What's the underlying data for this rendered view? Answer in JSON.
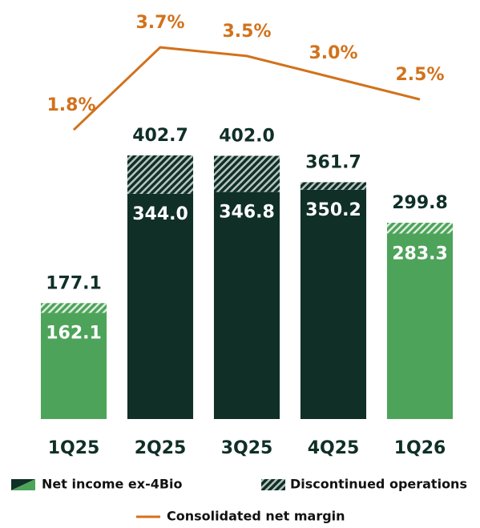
{
  "chart_data": {
    "type": "bar",
    "categories": [
      "1Q25",
      "2Q25",
      "3Q25",
      "4Q25",
      "1Q26"
    ],
    "series": [
      {
        "name": "Net income ex-4Bio",
        "colors": [
          "#4ea35a",
          "#0f2f27",
          "#0f2f27",
          "#0f2f27",
          "#4ea35a"
        ],
        "values": [
          162.1,
          344,
          346.8,
          350.2,
          283.3
        ],
        "value_labels": [
          "162.1",
          "344.0",
          "346.8",
          "350.2",
          "283.3"
        ]
      },
      {
        "name": "Discontinued operations",
        "hatch": true,
        "values": [
          15,
          58.7,
          55.2,
          11.5,
          16.5
        ]
      },
      {
        "name": "Consolidated net margin",
        "type": "line",
        "axis": "y2",
        "color": "#d2721c",
        "values": [
          1.8,
          3.7,
          3.5,
          3.0,
          2.5
        ],
        "value_labels": [
          "1.8%",
          "3.7%",
          "3.5%",
          "3.0%",
          "2.5%"
        ]
      }
    ],
    "total_labels": [
      "177.1",
      "402.7",
      "402.0",
      "361.7",
      "299.8"
    ],
    "ylim": [
      0,
      640
    ],
    "y2lim": [
      -4.86,
      4.79
    ]
  }
}
